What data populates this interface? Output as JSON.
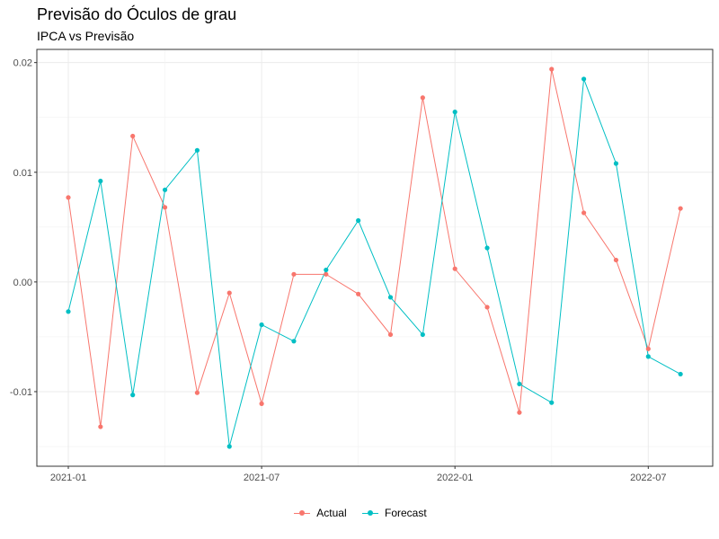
{
  "chart_data": {
    "type": "line",
    "title": "Previsão do Óculos de grau",
    "subtitle": "IPCA vs Previsão",
    "x": [
      "2021-01",
      "2021-02",
      "2021-03",
      "2021-04",
      "2021-05",
      "2021-06",
      "2021-07",
      "2021-08",
      "2021-09",
      "2021-10",
      "2021-11",
      "2021-12",
      "2022-01",
      "2022-02",
      "2022-03",
      "2022-04",
      "2022-05",
      "2022-06",
      "2022-07",
      "2022-08"
    ],
    "x_tick_labels": [
      "2021-01",
      "2021-07",
      "2022-01",
      "2022-07"
    ],
    "y_tick_values": [
      -0.01,
      0.0,
      0.01,
      0.02
    ],
    "y_tick_labels": [
      "-0.01",
      "0.00",
      "0.01",
      "0.02"
    ],
    "ylim": [
      -0.0168,
      0.0212
    ],
    "grid": true,
    "legend_position": "bottom",
    "series": [
      {
        "name": "Actual",
        "color": "#F8766D",
        "values": [
          0.0077,
          -0.0132,
          0.0133,
          0.0068,
          -0.0101,
          -0.001,
          -0.0111,
          0.0007,
          0.0007,
          -0.0011,
          -0.0048,
          0.0168,
          0.0012,
          -0.0023,
          -0.0119,
          0.0194,
          0.0063,
          0.002,
          -0.0061,
          0.0067
        ]
      },
      {
        "name": "Forecast",
        "color": "#00BFC4",
        "values": [
          -0.0027,
          0.0092,
          -0.0103,
          0.0084,
          0.012,
          -0.015,
          -0.0039,
          -0.0054,
          0.0011,
          0.0056,
          -0.0014,
          -0.0048,
          0.0155,
          0.0031,
          -0.0093,
          -0.011,
          0.0185,
          0.0108,
          -0.0068,
          -0.0084
        ]
      }
    ]
  }
}
